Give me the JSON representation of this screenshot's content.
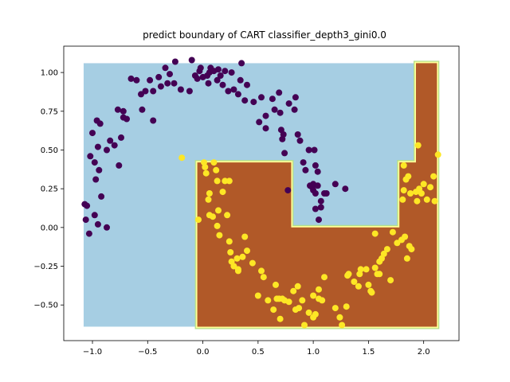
{
  "chart_data": {
    "type": "scatter",
    "title": "predict boundary of CART classifier_depth3_gini0.0",
    "xlabel": "",
    "ylabel": "",
    "xlim": [
      -1.26,
      2.32
    ],
    "ylim": [
      -0.73,
      1.17
    ],
    "xticks": [
      -1.0,
      -0.5,
      0.0,
      0.5,
      1.0,
      1.5,
      2.0
    ],
    "xtick_labels": [
      "−1.0",
      "−0.5",
      "0.0",
      "0.5",
      "1.0",
      "1.5",
      "2.0"
    ],
    "yticks": [
      -0.5,
      -0.25,
      0.0,
      0.25,
      0.5,
      0.75,
      1.0
    ],
    "ytick_labels": [
      "−0.50",
      "−0.25",
      "0.00",
      "0.25",
      "0.50",
      "0.75",
      "1.00"
    ],
    "grid": false,
    "legend": "none",
    "background_region": {
      "x": [
        -1.08,
        2.12
      ],
      "y": [
        -0.64,
        1.06
      ],
      "color": "#a6cee3"
    },
    "class1_region": {
      "polygon": [
        [
          -0.05,
          -0.64
        ],
        [
          -0.05,
          0.42
        ],
        [
          0.8,
          0.42
        ],
        [
          0.8,
          0.0
        ],
        [
          1.78,
          0.0
        ],
        [
          1.78,
          0.42
        ],
        [
          1.93,
          0.42
        ],
        [
          1.93,
          1.06
        ],
        [
          2.12,
          1.06
        ],
        [
          2.12,
          -0.64
        ]
      ],
      "color": "#b15928",
      "edge_colors": [
        "#b2df8a",
        "#ffff99"
      ]
    },
    "series": [
      {
        "color": "#440154",
        "points": [
          [
            -1.07,
            0.15
          ],
          [
            -1.05,
            0.14
          ],
          [
            -1.06,
            0.05
          ],
          [
            -1.03,
            -0.04
          ],
          [
            -0.98,
            0.08
          ],
          [
            -0.95,
            0.02
          ],
          [
            -0.87,
            0.0
          ],
          [
            -0.92,
            0.2
          ],
          [
            -0.97,
            0.31
          ],
          [
            -0.94,
            0.37
          ],
          [
            -0.98,
            0.42
          ],
          [
            -1.02,
            0.46
          ],
          [
            -0.95,
            0.52
          ],
          [
            -1.0,
            0.61
          ],
          [
            -0.96,
            0.69
          ],
          [
            -0.93,
            0.67
          ],
          [
            -0.87,
            0.5
          ],
          [
            -0.8,
            0.53
          ],
          [
            -0.84,
            0.56
          ],
          [
            -0.74,
            0.58
          ],
          [
            -0.76,
            0.4
          ],
          [
            -0.77,
            0.76
          ],
          [
            -0.72,
            0.75
          ],
          [
            -0.72,
            0.71
          ],
          [
            -0.69,
            0.7
          ],
          [
            -0.65,
            0.96
          ],
          [
            -0.6,
            0.95
          ],
          [
            -0.56,
            0.86
          ],
          [
            -0.55,
            0.76
          ],
          [
            -0.52,
            0.88
          ],
          [
            -0.48,
            0.95
          ],
          [
            -0.45,
            0.88
          ],
          [
            -0.45,
            0.69
          ],
          [
            -0.4,
            0.97
          ],
          [
            -0.38,
            0.91
          ],
          [
            -0.34,
            1.03
          ],
          [
            -0.32,
            0.93
          ],
          [
            -0.3,
            0.99
          ],
          [
            -0.26,
            0.93
          ],
          [
            -0.25,
            1.07
          ],
          [
            -0.2,
            0.89
          ],
          [
            -0.12,
            0.88
          ],
          [
            -0.1,
            1.08
          ],
          [
            -0.07,
            0.98
          ],
          [
            -0.03,
            1.01
          ],
          [
            -0.05,
            0.96
          ],
          [
            0.0,
            0.97
          ],
          [
            -0.02,
            1.03
          ],
          [
            0.04,
            0.98
          ],
          [
            0.06,
            1.0
          ],
          [
            0.05,
            0.93
          ],
          [
            0.07,
            1.03
          ],
          [
            0.1,
            1.01
          ],
          [
            0.13,
            0.95
          ],
          [
            0.14,
            1.02
          ],
          [
            0.16,
            0.98
          ],
          [
            0.18,
            0.92
          ],
          [
            0.2,
            1.01
          ],
          [
            0.23,
            0.88
          ],
          [
            0.26,
            1.0
          ],
          [
            0.28,
            0.89
          ],
          [
            0.32,
            0.86
          ],
          [
            0.34,
            0.95
          ],
          [
            0.35,
            1.06
          ],
          [
            0.38,
            0.82
          ],
          [
            0.4,
            0.92
          ],
          [
            0.46,
            0.81
          ],
          [
            0.51,
            0.68
          ],
          [
            0.53,
            0.84
          ],
          [
            0.57,
            0.72
          ],
          [
            0.57,
            0.64
          ],
          [
            0.63,
            0.83
          ],
          [
            0.65,
            0.76
          ],
          [
            0.69,
            0.87
          ],
          [
            0.7,
            0.74
          ],
          [
            0.71,
            0.63
          ],
          [
            0.72,
            0.57
          ],
          [
            0.73,
            0.6
          ],
          [
            0.74,
            0.48
          ],
          [
            0.78,
            0.8
          ],
          [
            0.83,
            0.76
          ],
          [
            0.84,
            0.84
          ],
          [
            0.86,
            0.6
          ],
          [
            0.88,
            0.56
          ],
          [
            0.91,
            0.42
          ],
          [
            0.93,
            0.37
          ],
          [
            0.96,
            0.5
          ],
          [
            0.97,
            0.27
          ],
          [
            0.99,
            0.26
          ],
          [
            1.0,
            0.28
          ],
          [
            1.0,
            0.24
          ],
          [
            1.02,
            0.22
          ],
          [
            1.02,
            0.12
          ],
          [
            1.04,
            0.27
          ],
          [
            1.05,
            0.05
          ],
          [
            1.07,
            0.17
          ],
          [
            1.07,
            0.13
          ],
          [
            1.1,
            0.22
          ],
          [
            1.12,
            0.22
          ],
          [
            1.2,
            0.28
          ],
          [
            1.29,
            0.25
          ],
          [
            0.77,
            0.24
          ],
          [
            1.01,
            0.5
          ],
          [
            1.02,
            0.4
          ],
          [
            1.04,
            0.36
          ]
        ]
      },
      {
        "color": "#fde725",
        "points": [
          [
            -0.19,
            0.45
          ],
          [
            -0.04,
            0.05
          ],
          [
            0.01,
            0.42
          ],
          [
            0.02,
            0.39
          ],
          [
            0.03,
            0.35
          ],
          [
            0.05,
            0.18
          ],
          [
            0.06,
            0.22
          ],
          [
            0.06,
            0.08
          ],
          [
            0.09,
            0.07
          ],
          [
            0.1,
            0.42
          ],
          [
            0.13,
            0.3
          ],
          [
            0.12,
            0.37
          ],
          [
            0.13,
            0.01
          ],
          [
            0.14,
            0.11
          ],
          [
            0.15,
            -0.05
          ],
          [
            0.18,
            0.23
          ],
          [
            0.2,
            0.3
          ],
          [
            0.22,
            0.08
          ],
          [
            0.24,
            -0.09
          ],
          [
            0.24,
            0.3
          ],
          [
            0.25,
            -0.16
          ],
          [
            0.26,
            -0.22
          ],
          [
            0.28,
            -0.25
          ],
          [
            0.31,
            -0.2
          ],
          [
            0.32,
            -0.27
          ],
          [
            0.32,
            -0.28
          ],
          [
            0.36,
            -0.19
          ],
          [
            0.38,
            -0.06
          ],
          [
            0.4,
            -0.15
          ],
          [
            0.45,
            -0.23
          ],
          [
            0.5,
            -0.44
          ],
          [
            0.53,
            -0.28
          ],
          [
            0.55,
            -0.32
          ],
          [
            0.59,
            -0.47
          ],
          [
            0.64,
            -0.53
          ],
          [
            0.66,
            -0.37
          ],
          [
            0.67,
            -0.46
          ],
          [
            0.69,
            -0.46
          ],
          [
            0.7,
            -0.59
          ],
          [
            0.72,
            -0.46
          ],
          [
            0.74,
            -0.47
          ],
          [
            0.78,
            -0.48
          ],
          [
            0.82,
            -0.41
          ],
          [
            0.84,
            -0.53
          ],
          [
            0.86,
            -0.38
          ],
          [
            0.87,
            -0.52
          ],
          [
            0.9,
            -0.47
          ],
          [
            0.92,
            -0.63
          ],
          [
            0.96,
            -0.55
          ],
          [
            1.0,
            -0.44
          ],
          [
            1.0,
            -0.58
          ],
          [
            1.02,
            -0.56
          ],
          [
            1.05,
            -0.46
          ],
          [
            1.05,
            -0.4
          ],
          [
            1.08,
            -0.47
          ],
          [
            1.1,
            -0.32
          ],
          [
            1.2,
            -0.52
          ],
          [
            1.24,
            -0.58
          ],
          [
            1.26,
            -0.63
          ],
          [
            1.3,
            -0.51
          ],
          [
            1.31,
            -0.31
          ],
          [
            1.32,
            -0.3
          ],
          [
            1.37,
            -0.35
          ],
          [
            1.41,
            -0.38
          ],
          [
            1.42,
            -0.3
          ],
          [
            1.43,
            -0.27
          ],
          [
            1.48,
            -0.27
          ],
          [
            1.5,
            -0.37
          ],
          [
            1.52,
            -0.41
          ],
          [
            1.53,
            -0.42
          ],
          [
            1.56,
            -0.26
          ],
          [
            1.56,
            -0.04
          ],
          [
            1.58,
            -0.3
          ],
          [
            1.6,
            -0.22
          ],
          [
            1.6,
            -0.3
          ],
          [
            1.62,
            -0.2
          ],
          [
            1.64,
            -0.17
          ],
          [
            1.67,
            -0.14
          ],
          [
            1.7,
            -0.34
          ],
          [
            1.72,
            -0.03
          ],
          [
            1.76,
            -0.1
          ],
          [
            1.8,
            -0.08
          ],
          [
            1.83,
            -0.06
          ],
          [
            1.87,
            -0.12
          ],
          [
            1.89,
            -0.14
          ],
          [
            1.85,
            -0.2
          ],
          [
            1.82,
            0.4
          ],
          [
            1.82,
            0.24
          ],
          [
            1.84,
            0.31
          ],
          [
            1.86,
            0.33
          ],
          [
            1.88,
            0.22
          ],
          [
            1.93,
            0.23
          ],
          [
            1.94,
            0.17
          ],
          [
            1.96,
            0.25
          ],
          [
            1.98,
            0.22
          ],
          [
            2.0,
            0.28
          ],
          [
            2.03,
            0.18
          ],
          [
            2.06,
            0.26
          ],
          [
            2.09,
            0.33
          ],
          [
            2.1,
            0.17
          ],
          [
            2.13,
            0.47
          ],
          [
            1.95,
            0.53
          ],
          [
            1.81,
            0.18
          ]
        ]
      }
    ]
  }
}
